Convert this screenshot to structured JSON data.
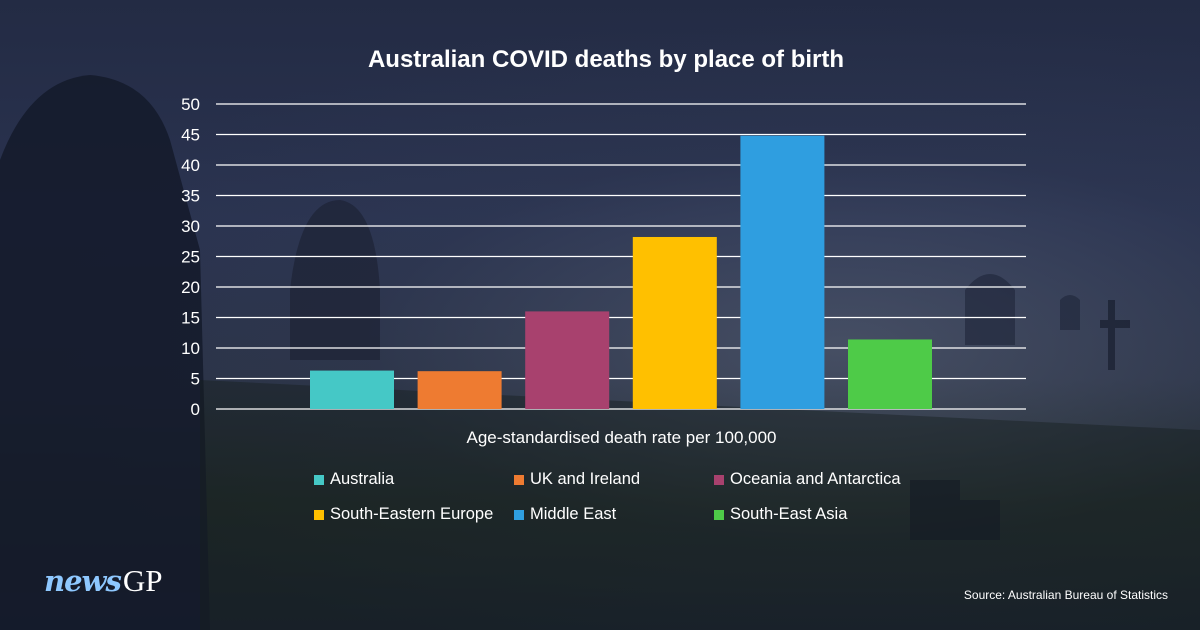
{
  "chart_data": {
    "type": "bar",
    "title": "Australian COVID deaths by place of birth",
    "xlabel": "Age-standardised death rate per 100,000",
    "ylabel": "",
    "ylim": [
      0,
      50
    ],
    "yticks": [
      0,
      5,
      10,
      15,
      20,
      25,
      30,
      35,
      40,
      45,
      50
    ],
    "grid": true,
    "legend_placement": "bottom",
    "categories": [
      "Australia",
      "UK and Ireland",
      "Oceania and Antarctica",
      "South-Eastern Europe",
      "Middle East",
      "South-East Asia"
    ],
    "values": [
      6.3,
      6.2,
      16,
      28.2,
      44.8,
      11.4
    ],
    "colors": [
      "#45c8c6",
      "#ee7b31",
      "#a8416e",
      "#ffc000",
      "#2f9ee0",
      "#4ecb48"
    ]
  },
  "branding": {
    "logo_news": "news",
    "logo_gp": "GP",
    "source": "Source: Australian Bureau of Statistics"
  }
}
